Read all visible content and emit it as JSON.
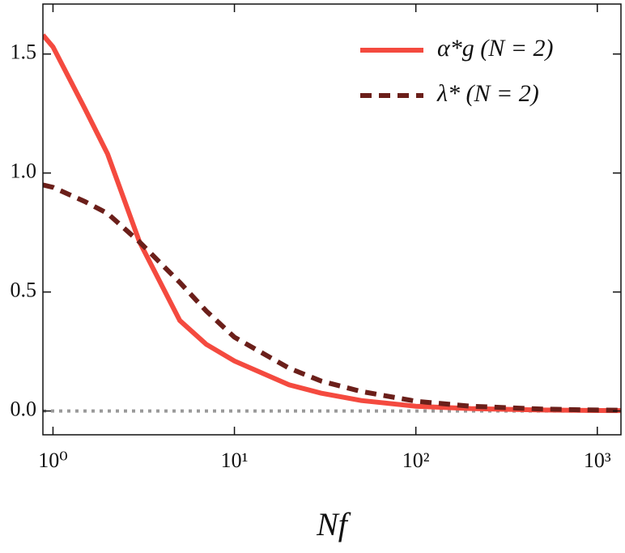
{
  "chart_data": {
    "type": "line",
    "x_label": "Nf",
    "x_log": true,
    "x": [
      0.88,
      1,
      1.5,
      2,
      3,
      5,
      7,
      10,
      20,
      30,
      50,
      100,
      200,
      500,
      1000,
      1350
    ],
    "series": [
      {
        "name": "α*g (N = 2)",
        "color": "#f44a3f",
        "dash": false,
        "values": [
          1.58,
          1.53,
          1.27,
          1.08,
          0.71,
          0.38,
          0.28,
          0.21,
          0.11,
          0.075,
          0.044,
          0.02,
          0.01,
          0.004,
          0.002,
          0.0015
        ]
      },
      {
        "name": "λ* (N = 2)",
        "color": "#6b1f1a",
        "dash": true,
        "values": [
          0.95,
          0.94,
          0.88,
          0.83,
          0.71,
          0.54,
          0.42,
          0.31,
          0.18,
          0.126,
          0.082,
          0.041,
          0.02,
          0.008,
          0.004,
          0.003
        ]
      }
    ],
    "reference_line": {
      "y": 0,
      "color": "#999999"
    },
    "xlim": [
      0.88,
      1350
    ],
    "ylim": [
      -0.1,
      1.71
    ],
    "xticks": [
      {
        "value": 1,
        "label": "10⁰"
      },
      {
        "value": 10,
        "label": "10¹"
      },
      {
        "value": 100,
        "label": "10²"
      },
      {
        "value": 1000,
        "label": "10³"
      }
    ],
    "yticks": [
      {
        "value": 0,
        "label": "0.0"
      },
      0.5,
      {
        "value": 1,
        "label": "1.0"
      },
      1.5
    ],
    "legend": "upper right"
  }
}
